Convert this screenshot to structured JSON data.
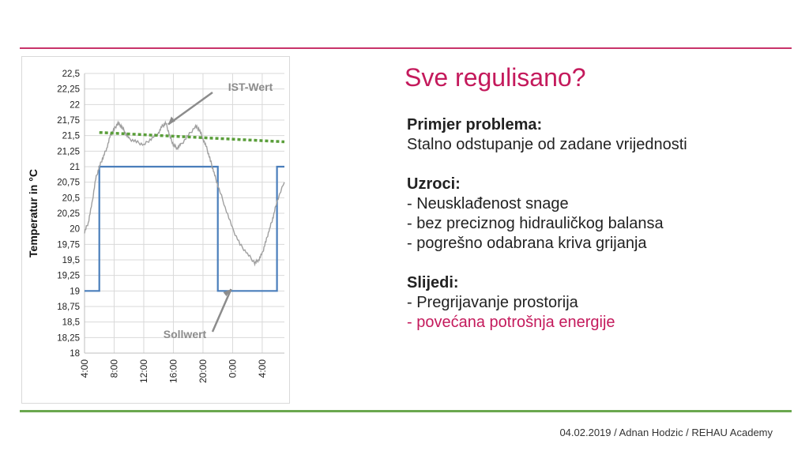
{
  "slide": {
    "title": "Sve regulisano?",
    "footer": "04.02.2019 / Adnan Hodzic / REHAU Academy",
    "colors": {
      "accent": "#c41a5c",
      "rule_top": "#c8336a",
      "rule_bottom": "#6aa84f"
    }
  },
  "content": {
    "problem_heading": "Primjer problema:",
    "problem_text": "Stalno odstupanje od zadane vrijednosti",
    "causes_heading": "Uzroci:",
    "causes": [
      "-  Neusklađenost snage",
      "-  bez preciznog hidrauličkog balansa",
      "-  pogrešno odabrana kriva grijanja"
    ],
    "effects_heading": "Slijedi:",
    "effects": [
      "-  Pregrijavanje prostorija",
      "-  povećana potrošnja energije"
    ]
  },
  "chart_data": {
    "type": "line",
    "ylabel": "Temperatur in °C",
    "xlabel": "",
    "ylim": [
      18,
      22.5
    ],
    "y_ticks": [
      "22,5",
      "22,25",
      "22",
      "21,75",
      "21,5",
      "21,25",
      "21",
      "20,75",
      "20,5",
      "20,25",
      "20",
      "19,75",
      "19,5",
      "19,25",
      "19",
      "18,75",
      "18,5",
      "18,25",
      "18"
    ],
    "x_ticks": [
      "4:00",
      "8:00",
      "12:00",
      "16:00",
      "20:00",
      "0:00",
      "4:00"
    ],
    "x_range_hours": [
      4,
      31
    ],
    "grid": true,
    "annotations": [
      {
        "text": "IST-Wert",
        "target_series": "IST-Wert"
      },
      {
        "text": "Sollwert",
        "target_series": "Sollwert"
      }
    ],
    "series": [
      {
        "name": "Sollwert",
        "color": "#4a7ebb",
        "style": "step",
        "x": [
          4,
          6,
          6,
          22,
          22,
          30,
          30,
          31
        ],
        "y": [
          19,
          19,
          21,
          21,
          19,
          19,
          21,
          21
        ]
      },
      {
        "name": "IST-Wert",
        "color": "#a0a0a0",
        "style": "line",
        "x": [
          4,
          4.5,
          5,
          5.5,
          6,
          6.5,
          7,
          7.5,
          8,
          8.5,
          9,
          9.5,
          10,
          11,
          12,
          13,
          14,
          14.5,
          15,
          15.5,
          16,
          16.5,
          17,
          18,
          19,
          19.5,
          20,
          20.5,
          21,
          21.5,
          22,
          23,
          24,
          25,
          26,
          27,
          27.5,
          28,
          28.5,
          29,
          29.5,
          30,
          31
        ],
        "y": [
          19.95,
          20.1,
          20.4,
          20.8,
          21.0,
          21.15,
          21.3,
          21.5,
          21.6,
          21.7,
          21.65,
          21.55,
          21.45,
          21.4,
          21.35,
          21.45,
          21.55,
          21.65,
          21.7,
          21.5,
          21.35,
          21.3,
          21.35,
          21.5,
          21.65,
          21.6,
          21.45,
          21.3,
          21.1,
          20.9,
          20.7,
          20.35,
          20.0,
          19.75,
          19.6,
          19.45,
          19.5,
          19.6,
          19.8,
          20.0,
          20.2,
          20.45,
          20.75
        ]
      },
      {
        "name": "Trend",
        "color": "#5a9e3a",
        "style": "dotted",
        "x": [
          6,
          31
        ],
        "y": [
          21.55,
          21.4
        ]
      }
    ]
  }
}
